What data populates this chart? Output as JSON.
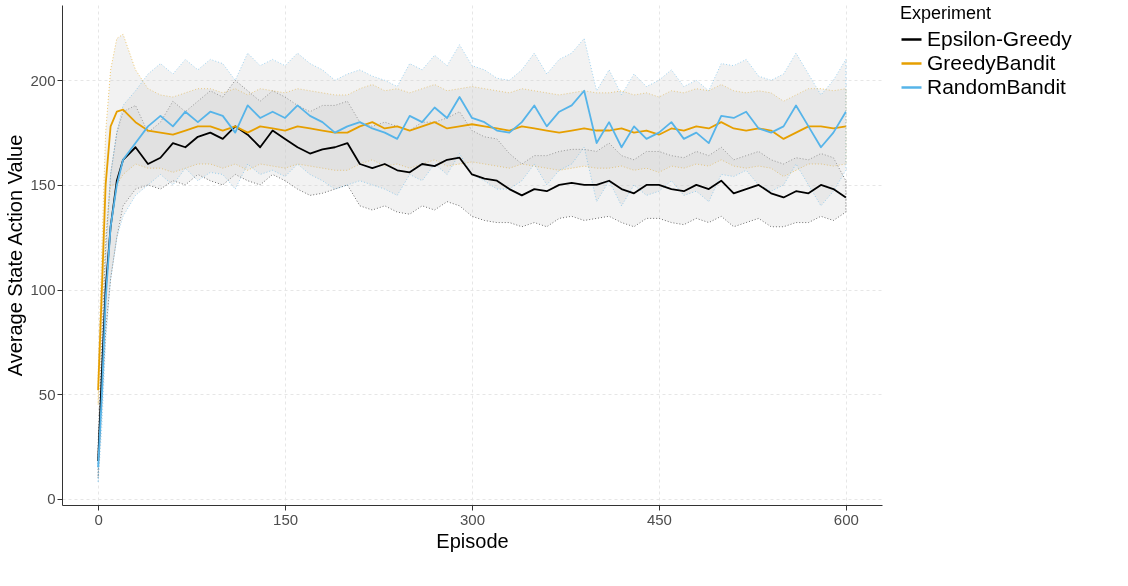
{
  "chart_data": {
    "type": "line",
    "xlabel": "Episode",
    "ylabel": "Average State Action Value",
    "legend_title": "Experiment",
    "x": [
      0,
      3,
      6,
      10,
      15,
      20,
      30,
      40,
      50,
      60,
      70,
      80,
      90,
      100,
      110,
      120,
      130,
      140,
      150,
      160,
      170,
      180,
      190,
      200,
      210,
      220,
      230,
      240,
      250,
      260,
      270,
      280,
      290,
      300,
      310,
      320,
      330,
      340,
      350,
      360,
      370,
      380,
      390,
      400,
      410,
      420,
      430,
      440,
      450,
      460,
      470,
      480,
      490,
      500,
      510,
      520,
      530,
      540,
      550,
      560,
      570,
      580,
      590,
      600
    ],
    "series": [
      {
        "name": "Epsilon-Greedy",
        "color": "#000000",
        "values": [
          18,
          60,
          100,
          130,
          152,
          162,
          168,
          160,
          163,
          170,
          168,
          173,
          175,
          172,
          178,
          174,
          168,
          176,
          172,
          168,
          165,
          167,
          168,
          170,
          160,
          158,
          160,
          157,
          156,
          160,
          159,
          162,
          163,
          155,
          153,
          152,
          148,
          145,
          148,
          147,
          150,
          151,
          150,
          150,
          152,
          148,
          146,
          150,
          150,
          148,
          147,
          150,
          148,
          152,
          146,
          148,
          150,
          146,
          144,
          147,
          146,
          150,
          148,
          144
        ],
        "lower": [
          10,
          45,
          80,
          105,
          125,
          140,
          148,
          150,
          148,
          152,
          150,
          155,
          152,
          150,
          155,
          152,
          150,
          155,
          152,
          148,
          145,
          146,
          148,
          150,
          140,
          138,
          140,
          137,
          136,
          140,
          138,
          142,
          140,
          135,
          133,
          132,
          132,
          130,
          132,
          130,
          134,
          135,
          133,
          134,
          135,
          132,
          130,
          134,
          134,
          132,
          131,
          134,
          132,
          135,
          130,
          132,
          134,
          130,
          130,
          132,
          132,
          135,
          133,
          137
        ],
        "upper": [
          26,
          75,
          120,
          155,
          175,
          185,
          188,
          175,
          180,
          190,
          185,
          190,
          195,
          192,
          200,
          195,
          190,
          195,
          192,
          188,
          185,
          188,
          188,
          190,
          180,
          178,
          180,
          178,
          176,
          180,
          180,
          182,
          185,
          176,
          173,
          172,
          165,
          160,
          164,
          164,
          166,
          167,
          167,
          166,
          170,
          164,
          162,
          166,
          166,
          164,
          163,
          166,
          164,
          168,
          162,
          164,
          166,
          162,
          160,
          163,
          162,
          165,
          163,
          152
        ]
      },
      {
        "name": "GreedyBandit",
        "color": "#e69f00",
        "values": [
          52,
          100,
          150,
          178,
          185,
          186,
          180,
          176,
          175,
          174,
          176,
          178,
          178,
          176,
          178,
          175,
          178,
          177,
          176,
          178,
          177,
          176,
          175,
          175,
          178,
          180,
          177,
          178,
          176,
          178,
          180,
          177,
          178,
          179,
          178,
          177,
          176,
          178,
          177,
          176,
          175,
          176,
          177,
          176,
          176,
          177,
          175,
          176,
          174,
          177,
          176,
          178,
          177,
          180,
          177,
          176,
          177,
          176,
          172,
          175,
          178,
          178,
          177,
          178
        ],
        "lower": [
          45,
          85,
          125,
          150,
          150,
          155,
          160,
          158,
          158,
          156,
          158,
          160,
          160,
          158,
          160,
          157,
          160,
          159,
          158,
          160,
          159,
          158,
          157,
          157,
          160,
          162,
          159,
          160,
          158,
          160,
          162,
          159,
          160,
          161,
          160,
          159,
          158,
          160,
          159,
          158,
          157,
          158,
          159,
          158,
          158,
          159,
          157,
          158,
          156,
          159,
          158,
          160,
          159,
          162,
          159,
          158,
          159,
          158,
          154,
          157,
          160,
          160,
          159,
          160
        ],
        "upper": [
          60,
          120,
          175,
          205,
          220,
          222,
          205,
          196,
          193,
          192,
          194,
          196,
          196,
          194,
          196,
          193,
          196,
          195,
          194,
          196,
          195,
          194,
          193,
          193,
          196,
          198,
          195,
          196,
          194,
          196,
          198,
          195,
          196,
          197,
          196,
          195,
          194,
          196,
          195,
          194,
          193,
          194,
          195,
          194,
          194,
          195,
          193,
          194,
          192,
          195,
          194,
          196,
          195,
          198,
          195,
          194,
          195,
          194,
          190,
          193,
          196,
          196,
          195,
          196
        ]
      },
      {
        "name": "RandomBandit",
        "color": "#56b4e9",
        "values": [
          15,
          50,
          95,
          130,
          150,
          162,
          170,
          178,
          183,
          178,
          185,
          180,
          185,
          183,
          175,
          188,
          182,
          185,
          182,
          188,
          183,
          180,
          175,
          178,
          180,
          177,
          175,
          172,
          183,
          180,
          187,
          182,
          192,
          182,
          180,
          176,
          175,
          180,
          188,
          178,
          185,
          188,
          195,
          170,
          180,
          168,
          178,
          172,
          175,
          180,
          172,
          175,
          170,
          183,
          182,
          185,
          177,
          175,
          178,
          188,
          178,
          168,
          175,
          185
        ],
        "lower": [
          8,
          35,
          75,
          105,
          125,
          135,
          145,
          150,
          155,
          150,
          158,
          152,
          156,
          155,
          148,
          160,
          155,
          157,
          154,
          160,
          155,
          152,
          148,
          150,
          152,
          150,
          148,
          145,
          155,
          152,
          160,
          155,
          165,
          155,
          152,
          148,
          148,
          152,
          160,
          150,
          157,
          160,
          168,
          142,
          152,
          140,
          150,
          145,
          147,
          152,
          145,
          147,
          142,
          155,
          154,
          157,
          150,
          147,
          150,
          160,
          150,
          140,
          147,
          157
        ],
        "upper": [
          22,
          65,
          115,
          155,
          175,
          188,
          195,
          203,
          208,
          203,
          210,
          205,
          210,
          208,
          200,
          213,
          207,
          210,
          207,
          213,
          208,
          205,
          200,
          203,
          205,
          202,
          200,
          197,
          208,
          205,
          212,
          207,
          217,
          207,
          205,
          201,
          200,
          205,
          213,
          203,
          210,
          213,
          220,
          195,
          205,
          193,
          203,
          197,
          200,
          205,
          197,
          200,
          195,
          208,
          207,
          210,
          202,
          200,
          203,
          213,
          203,
          193,
          200,
          210
        ]
      }
    ],
    "xlim": [
      -29,
      629
    ],
    "ylim": [
      -3,
      236
    ],
    "xticks": [
      0,
      150,
      300,
      450,
      600
    ],
    "yticks": [
      0,
      50,
      100,
      150,
      200
    ],
    "grid": true,
    "legend": "right",
    "marker": "none",
    "line_style": "solid"
  }
}
